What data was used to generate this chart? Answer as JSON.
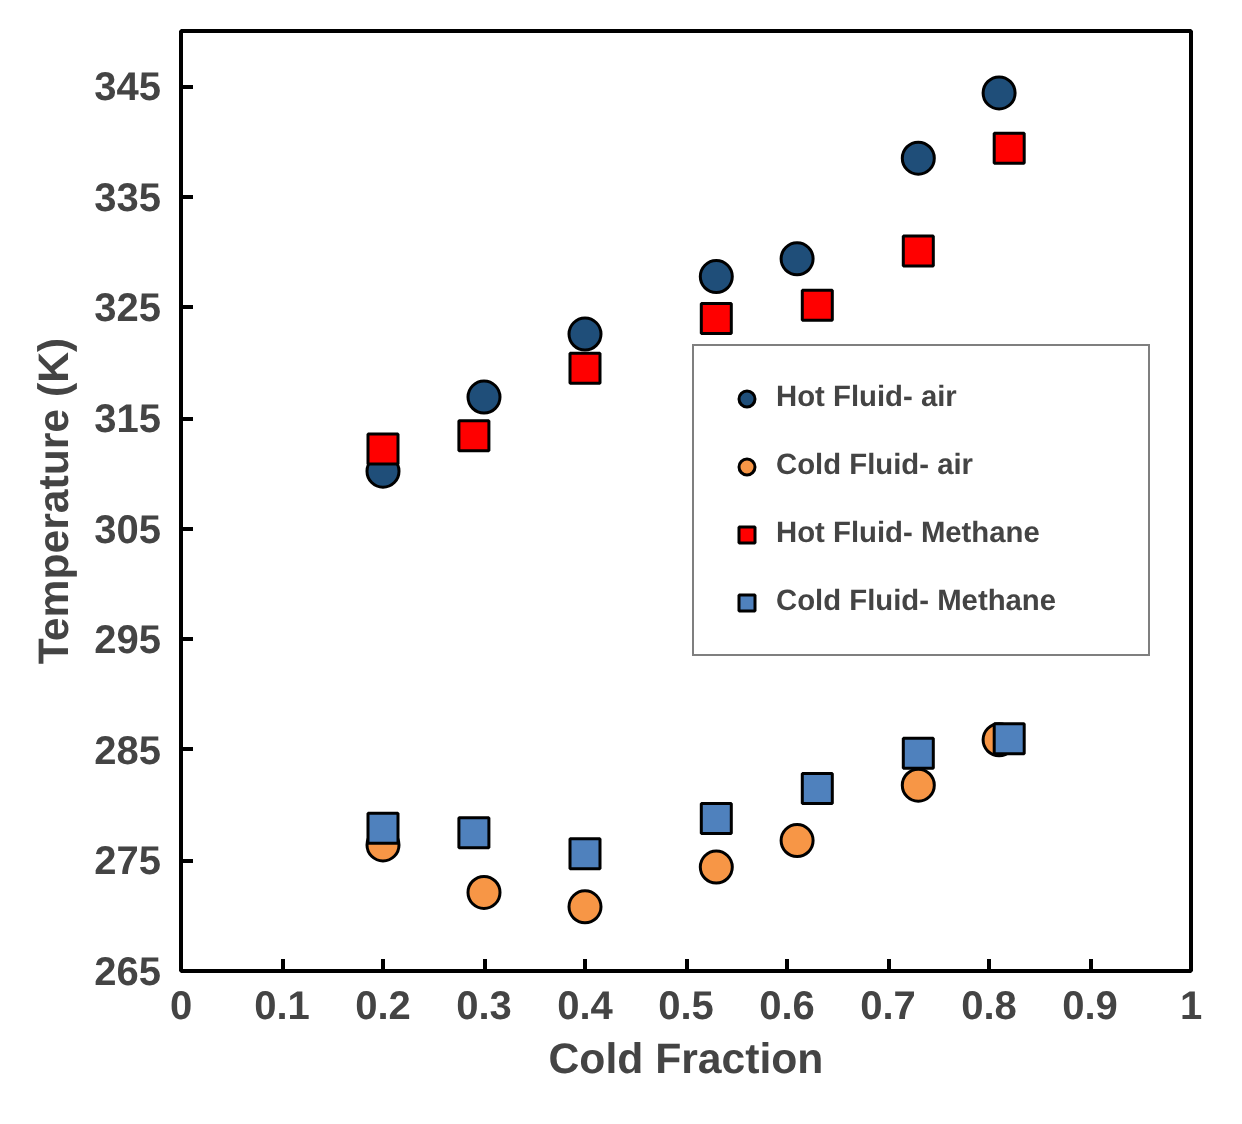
{
  "chart_data": {
    "type": "scatter",
    "xlabel": "Cold Fraction",
    "ylabel": "Temperature (K)",
    "xlim": [
      0,
      1
    ],
    "xticks": [
      0,
      0.1,
      0.2,
      0.3,
      0.4,
      0.5,
      0.6,
      0.7,
      0.8,
      0.9,
      1
    ],
    "ylim": [
      265,
      350
    ],
    "yticks": [
      265,
      275,
      285,
      295,
      305,
      315,
      325,
      335,
      345
    ],
    "grid": false,
    "legend": "right",
    "series": [
      {
        "name": "Hot Fluid- air",
        "color": "#1f4e79",
        "marker": "circle",
        "x": [
          0.2,
          0.3,
          0.4,
          0.53,
          0.61,
          0.73,
          0.81
        ],
        "values": [
          310.2,
          316.9,
          322.6,
          327.8,
          329.4,
          338.5,
          344.4
        ]
      },
      {
        "name": "Cold Fluid- air",
        "color": "#f79646",
        "marker": "circle",
        "x": [
          0.2,
          0.3,
          0.4,
          0.53,
          0.61,
          0.73,
          0.81
        ],
        "values": [
          276.4,
          272.1,
          270.8,
          274.4,
          276.8,
          281.8,
          285.9
        ]
      },
      {
        "name": "Hot Fluid- Methane",
        "color": "#ff0000",
        "marker": "square",
        "x": [
          0.2,
          0.29,
          0.4,
          0.53,
          0.63,
          0.73,
          0.82
        ],
        "values": [
          312.2,
          313.4,
          319.5,
          324.0,
          325.2,
          330.1,
          339.4
        ]
      },
      {
        "name": "Cold Fluid- Methane",
        "color": "#4f81bd",
        "marker": "square",
        "x": [
          0.2,
          0.29,
          0.4,
          0.53,
          0.63,
          0.73,
          0.82
        ],
        "values": [
          277.9,
          277.5,
          275.6,
          278.8,
          281.5,
          284.7,
          286.0
        ]
      }
    ]
  }
}
